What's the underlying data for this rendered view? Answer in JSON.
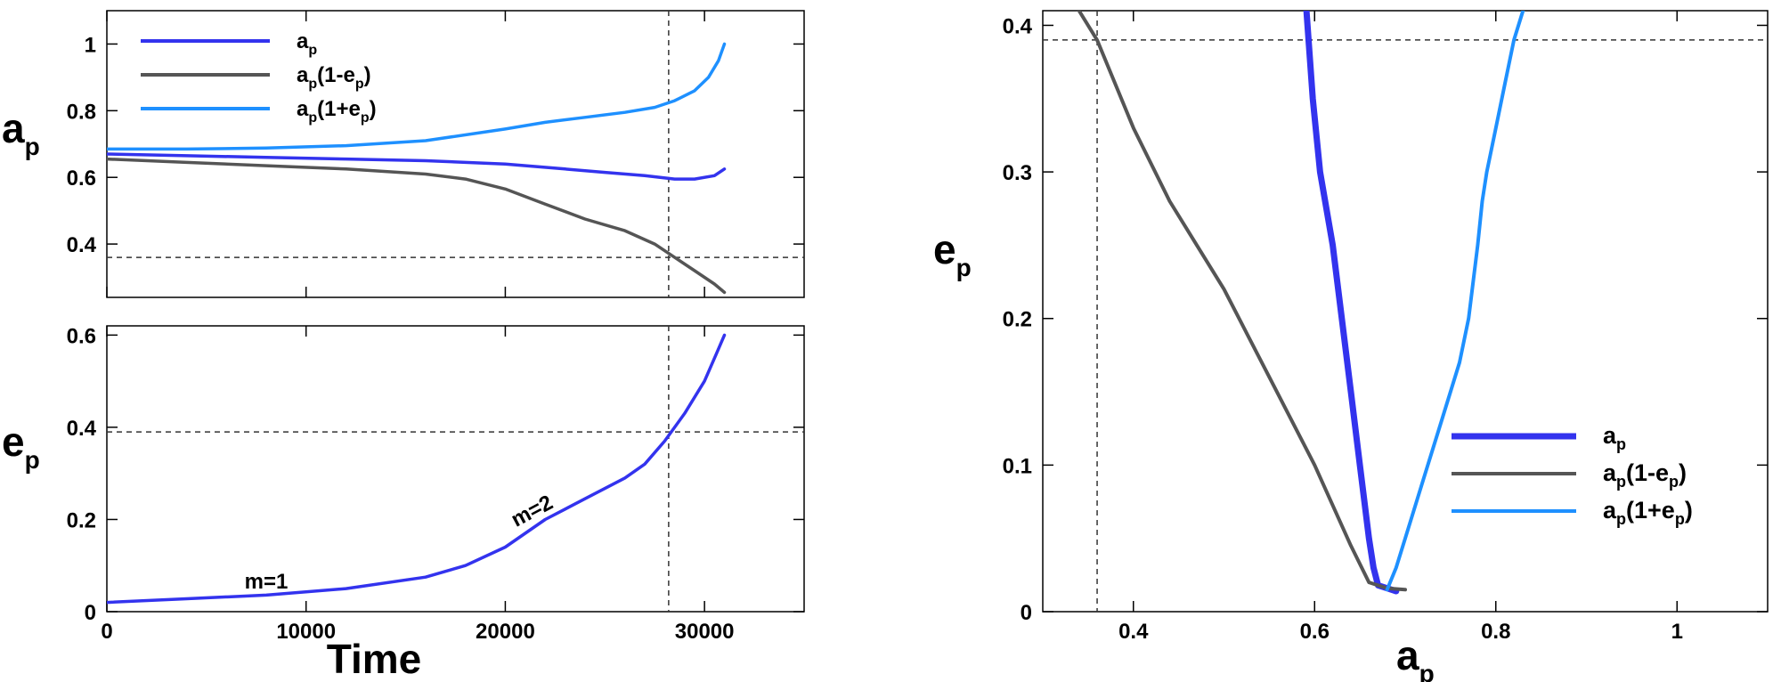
{
  "chart_data": [
    {
      "panel": "top-left",
      "type": "line",
      "xlim": [
        0,
        35000
      ],
      "ylim": [
        0.24,
        1.1
      ],
      "xticks": [
        0,
        10000,
        20000,
        30000
      ],
      "yticks": [
        0.4,
        0.6,
        0.8,
        1
      ],
      "ytick_labels": [
        "0.4",
        "0.6",
        "0.8",
        "1"
      ],
      "xtick_labels_shown": false,
      "ylabel": {
        "main": "a",
        "sub": "p"
      },
      "legend_position": "top-left",
      "ref_lines": {
        "vertical_x": 28200,
        "horizontal_y": 0.36
      },
      "series": [
        {
          "key": "ap",
          "legend": {
            "main": "a",
            "sub": "p",
            "tail": ""
          },
          "color": "#3333ee",
          "x": [
            0,
            4000,
            8000,
            12000,
            16000,
            20000,
            23000,
            25000,
            27000,
            28500,
            29500,
            30500,
            31000
          ],
          "y": [
            0.67,
            0.665,
            0.66,
            0.655,
            0.65,
            0.64,
            0.625,
            0.615,
            0.605,
            0.595,
            0.595,
            0.605,
            0.625
          ]
        },
        {
          "key": "peri",
          "legend": {
            "main": "a",
            "sub": "p",
            "tail": "(1-e",
            "sub2": "p",
            "end": ")"
          },
          "color": "#555555",
          "x": [
            0,
            4000,
            8000,
            12000,
            16000,
            18000,
            20000,
            22000,
            24000,
            26000,
            27500,
            28500,
            29500,
            30500,
            31000
          ],
          "y": [
            0.655,
            0.645,
            0.635,
            0.625,
            0.61,
            0.595,
            0.565,
            0.52,
            0.475,
            0.44,
            0.4,
            0.36,
            0.32,
            0.28,
            0.255
          ]
        },
        {
          "key": "apo",
          "legend": {
            "main": "a",
            "sub": "p",
            "tail": "(1+e",
            "sub2": "p",
            "end": ")"
          },
          "color": "#1e90ff",
          "x": [
            0,
            4000,
            8000,
            12000,
            16000,
            20000,
            22000,
            24000,
            26000,
            27500,
            28500,
            29500,
            30200,
            30700,
            31000
          ],
          "y": [
            0.685,
            0.685,
            0.688,
            0.695,
            0.71,
            0.745,
            0.765,
            0.78,
            0.795,
            0.81,
            0.83,
            0.86,
            0.9,
            0.95,
            1.0
          ]
        }
      ]
    },
    {
      "panel": "bottom-left",
      "type": "line",
      "xlim": [
        0,
        35000
      ],
      "ylim": [
        0,
        0.62
      ],
      "xticks": [
        0,
        10000,
        20000,
        30000
      ],
      "xtick_labels": [
        "0",
        "10000",
        "20000",
        "30000"
      ],
      "yticks": [
        0,
        0.2,
        0.4,
        0.6
      ],
      "ytick_labels": [
        "0",
        "0.2",
        "0.4",
        "0.6"
      ],
      "xlabel": "Time",
      "ylabel": {
        "main": "e",
        "sub": "p"
      },
      "ref_lines": {
        "vertical_x": 28200,
        "horizontal_y": 0.39
      },
      "annotations": [
        {
          "text": "m=1",
          "x": 8000,
          "y": 0.05,
          "rotate": 0
        },
        {
          "text": "m=2",
          "x": 21500,
          "y": 0.205,
          "rotate": -28
        }
      ],
      "series": [
        {
          "key": "ep",
          "color": "#3333ee",
          "x": [
            0,
            4000,
            8000,
            12000,
            16000,
            18000,
            20000,
            22000,
            24000,
            26000,
            27000,
            28000,
            29000,
            30000,
            30600,
            31000
          ],
          "y": [
            0.02,
            0.028,
            0.036,
            0.05,
            0.075,
            0.1,
            0.14,
            0.2,
            0.245,
            0.29,
            0.32,
            0.37,
            0.43,
            0.5,
            0.56,
            0.6
          ]
        }
      ]
    },
    {
      "panel": "right",
      "type": "line",
      "xlim": [
        0.3,
        1.1
      ],
      "ylim": [
        0,
        0.41
      ],
      "xticks": [
        0.4,
        0.6,
        0.8,
        1
      ],
      "xtick_labels": [
        "0.4",
        "0.6",
        "0.8",
        "1"
      ],
      "yticks": [
        0,
        0.1,
        0.2,
        0.3,
        0.4
      ],
      "ytick_labels": [
        "0",
        "0.1",
        "0.2",
        "0.3",
        "0.4"
      ],
      "xlabel": {
        "main": "a",
        "sub": "p"
      },
      "ylabel": {
        "main": "e",
        "sub": "p"
      },
      "legend_position": "bottom-right",
      "ref_lines": {
        "vertical_x": 0.36,
        "horizontal_y": 0.39
      },
      "series": [
        {
          "key": "ap",
          "legend": {
            "main": "a",
            "sub": "p",
            "tail": ""
          },
          "color": "#3333ee",
          "width": 7,
          "x": [
            0.591,
            0.598,
            0.606,
            0.62,
            0.63,
            0.64,
            0.65,
            0.66,
            0.665,
            0.67,
            0.68,
            0.69
          ],
          "y": [
            0.41,
            0.35,
            0.3,
            0.25,
            0.2,
            0.15,
            0.1,
            0.05,
            0.03,
            0.018,
            0.016,
            0.014
          ]
        },
        {
          "key": "peri",
          "legend": {
            "main": "a",
            "sub": "p",
            "tail": "(1-e",
            "sub2": "p",
            "end": ")"
          },
          "color": "#555555",
          "width": 4,
          "x": [
            0.34,
            0.36,
            0.4,
            0.44,
            0.47,
            0.5,
            0.55,
            0.6,
            0.64,
            0.66,
            0.68,
            0.7
          ],
          "y": [
            0.41,
            0.39,
            0.33,
            0.28,
            0.25,
            0.22,
            0.16,
            0.1,
            0.045,
            0.02,
            0.016,
            0.015
          ]
        },
        {
          "key": "apo",
          "legend": {
            "main": "a",
            "sub": "p",
            "tail": "(1+e",
            "sub2": "p",
            "end": ")"
          },
          "color": "#1e90ff",
          "width": 4,
          "x": [
            0.68,
            0.69,
            0.7,
            0.72,
            0.74,
            0.76,
            0.77,
            0.78,
            0.785,
            0.79,
            0.8,
            0.81,
            0.82,
            0.83
          ],
          "y": [
            0.015,
            0.03,
            0.05,
            0.09,
            0.13,
            0.17,
            0.2,
            0.25,
            0.28,
            0.3,
            0.33,
            0.36,
            0.39,
            0.41
          ]
        }
      ]
    }
  ]
}
